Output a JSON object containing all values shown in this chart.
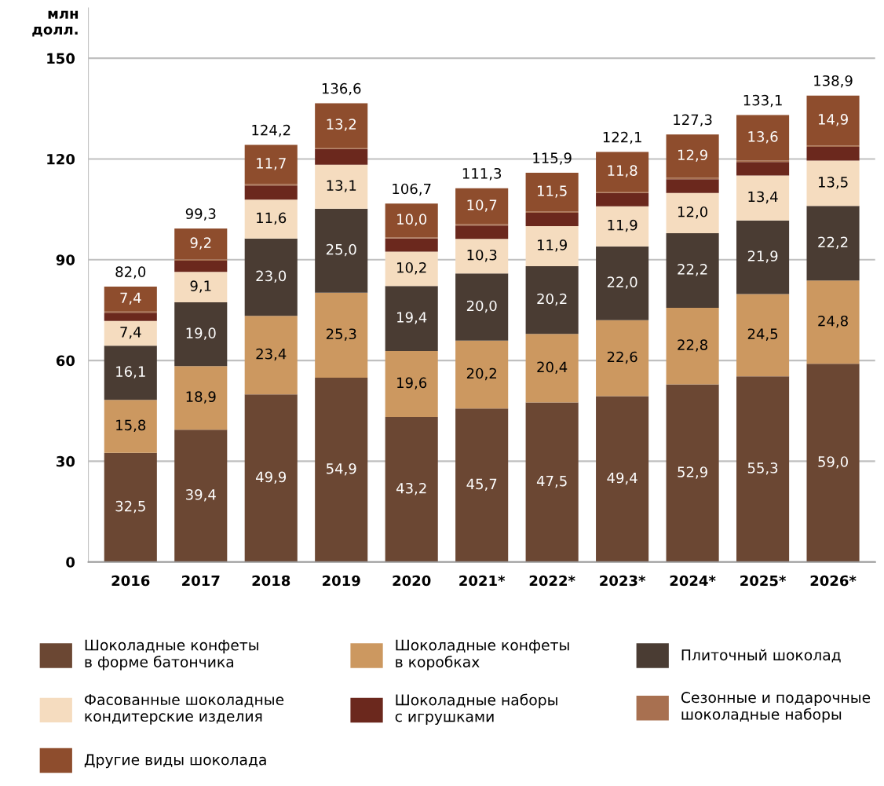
{
  "chart_data": {
    "type": "bar",
    "stacked": true,
    "ylabel": "млн\nдолл.",
    "categories": [
      "2016",
      "2017",
      "2018",
      "2019",
      "2020",
      "2021*",
      "2022*",
      "2023*",
      "2024*",
      "2025*",
      "2026*"
    ],
    "series": [
      {
        "name": "Шоколадные конфеты\nв форме батончика",
        "color": "#6b4733",
        "values": [
          32.5,
          39.4,
          49.9,
          54.9,
          43.2,
          45.7,
          47.5,
          49.4,
          52.9,
          55.3,
          59.0
        ],
        "value_labels": [
          "32,5",
          "39,4",
          "49,9",
          "54,9",
          "43,2",
          "45,7",
          "47,5",
          "49,4",
          "52,9",
          "55,3",
          "59,0"
        ]
      },
      {
        "name": "Шоколадные конфеты\nв коробках",
        "color": "#cc9860",
        "values": [
          15.8,
          18.9,
          23.4,
          25.3,
          19.6,
          20.2,
          20.4,
          22.6,
          22.8,
          24.5,
          24.8
        ],
        "value_labels": [
          "15,8",
          "18,9",
          "23,4",
          "25,3",
          "19,6",
          "20,2",
          "20,4",
          "22,6",
          "22,8",
          "24,5",
          "24,8"
        ]
      },
      {
        "name": "Плиточный шоколад",
        "color": "#4a3c33",
        "values": [
          16.1,
          19.0,
          23.0,
          25.0,
          19.4,
          20.0,
          20.2,
          22.0,
          22.2,
          21.9,
          22.2
        ],
        "value_labels": [
          "16,1",
          "19,0",
          "23,0",
          "25,0",
          "19,4",
          "20,0",
          "20,2",
          "22,0",
          "22,2",
          "21,9",
          "22,2"
        ]
      },
      {
        "name": "Фасованные шоколадные\nкондитерские изделия",
        "color": "#f5dcbf",
        "values": [
          7.4,
          9.1,
          11.6,
          13.1,
          10.2,
          10.3,
          11.9,
          11.9,
          12.0,
          13.4,
          13.5
        ],
        "value_labels": [
          "7,4",
          "9,1",
          "11,6",
          "13,1",
          "10,2",
          "10,3",
          "11,9",
          "11,9",
          "12,0",
          "13,4",
          "13,5"
        ]
      },
      {
        "name": "Шоколадные наборы\nс игрушками",
        "color": "#6b281d",
        "values": [
          2.4,
          3.3,
          4.2,
          4.7,
          3.9,
          4.0,
          4.0,
          4.0,
          4.1,
          4.0,
          4.1
        ]
      },
      {
        "name": "Сезонные и подарочные\nшоколадные наборы",
        "color": "#a87050",
        "values": [
          0.4,
          0.4,
          0.4,
          0.4,
          0.4,
          0.4,
          0.4,
          0.4,
          0.4,
          0.4,
          0.4
        ]
      },
      {
        "name": "Другие виды шоколада",
        "color": "#8e4d2d",
        "values": [
          7.4,
          9.2,
          11.7,
          13.2,
          10.0,
          10.7,
          11.5,
          11.8,
          12.9,
          13.6,
          14.9
        ],
        "value_labels": [
          "7,4",
          "9,2",
          "11,7",
          "13,2",
          "10,0",
          "10,7",
          "11,5",
          "11,8",
          "12,9",
          "13,6",
          "14,9"
        ]
      }
    ],
    "totals": [
      "82,0",
      "99,3",
      "124,2",
      "136,6",
      "106,7",
      "111,3",
      "115,9",
      "122,1",
      "127,3",
      "133,1",
      "138,9"
    ],
    "ylim": [
      0,
      165
    ],
    "yticks": [
      0,
      30,
      60,
      90,
      120,
      150
    ],
    "grid": "y",
    "legend": "bottom"
  }
}
